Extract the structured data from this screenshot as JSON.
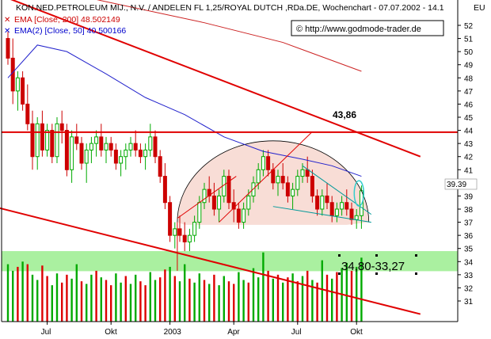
{
  "header": {
    "title": "KON.NED.PETROLEUM MIJ., N.V. / ANDELEN FL 1,25/ROYAL DUTCH ,RDa.DE, Wochenchart - 07.07.2002 - 14.1",
    "corner_label": "EU"
  },
  "legend": [
    {
      "symbol": "✕",
      "text": "EMA [Close, 200] 48.502149",
      "color": "#cc0000"
    },
    {
      "symbol": "✕",
      "text": "EMA(2) [Close, 50] 40.500166",
      "color": "#0000cc"
    }
  ],
  "copyright": "© http://www.godmode-trader.de",
  "annotations": {
    "resistance_value": "43,86",
    "support_zone": "34,80-33,27",
    "last_price": "39.39"
  },
  "colors": {
    "candle_up": "#00aa00",
    "candle_down": "#cc0000",
    "volume_up": "#00aa00",
    "volume_down": "#dd0000",
    "trendline": "#e00000",
    "ema200": "#cc2222",
    "ema50": "#2222cc",
    "support_zone": "#aaf0a0",
    "dome_fill": "#f8ddd6",
    "triangle_line": "#009999"
  },
  "chart_data": {
    "type": "candlestick",
    "ylim": [
      30,
      53.5
    ],
    "y_ticks": [
      31,
      32,
      33,
      34,
      35,
      36,
      37,
      38,
      39,
      40,
      41,
      42,
      43,
      44,
      45,
      46,
      47,
      48,
      49,
      50,
      51,
      52
    ],
    "x_ticks": [
      "Jul",
      "Okt",
      "2003",
      "Apr",
      "Jul",
      "Okt"
    ],
    "horizontal_lines": [
      {
        "value": 43.86,
        "label": "43,86"
      }
    ],
    "zones": [
      {
        "from": 33.27,
        "to": 34.8,
        "label": "34,80-33,27"
      }
    ],
    "candles": [
      [
        51.0,
        51.5,
        49.0,
        49.5
      ],
      [
        49.5,
        51.0,
        46.0,
        47.0
      ],
      [
        47.0,
        48.5,
        45.5,
        48.0
      ],
      [
        48.0,
        48.5,
        45.5,
        46.0
      ],
      [
        46.0,
        47.5,
        44.0,
        44.5
      ],
      [
        44.5,
        45.5,
        41.0,
        42.0
      ],
      [
        42.0,
        45.0,
        41.0,
        44.5
      ],
      [
        44.5,
        45.5,
        42.0,
        42.5
      ],
      [
        42.5,
        44.5,
        42.0,
        44.0
      ],
      [
        44.0,
        44.5,
        41.5,
        42.0
      ],
      [
        42.0,
        45.0,
        41.5,
        44.5
      ],
      [
        44.5,
        45.5,
        43.0,
        44.0
      ],
      [
        44.0,
        44.5,
        40.5,
        41.0
      ],
      [
        41.0,
        44.0,
        40.0,
        43.5
      ],
      [
        43.5,
        44.5,
        42.5,
        43.0
      ],
      [
        43.0,
        43.5,
        41.0,
        41.5
      ],
      [
        41.5,
        43.0,
        40.0,
        42.5
      ],
      [
        42.5,
        43.5,
        41.5,
        43.0
      ],
      [
        43.0,
        44.0,
        42.0,
        43.5
      ],
      [
        43.5,
        44.5,
        42.0,
        42.5
      ],
      [
        42.5,
        43.5,
        41.5,
        43.0
      ],
      [
        43.0,
        43.5,
        42.0,
        42.5
      ],
      [
        42.5,
        43.0,
        41.0,
        41.5
      ],
      [
        41.5,
        42.5,
        40.5,
        42.0
      ],
      [
        42.0,
        43.0,
        41.0,
        42.5
      ],
      [
        42.5,
        43.5,
        42.0,
        43.0
      ],
      [
        43.0,
        44.0,
        42.0,
        42.5
      ],
      [
        42.5,
        43.0,
        41.5,
        42.0
      ],
      [
        42.0,
        43.0,
        41.0,
        42.5
      ],
      [
        42.5,
        44.5,
        42.0,
        43.5
      ],
      [
        43.5,
        44.0,
        41.5,
        42.0
      ],
      [
        42.0,
        42.5,
        40.0,
        40.5
      ],
      [
        40.5,
        41.5,
        38.0,
        38.5
      ],
      [
        38.5,
        39.0,
        35.5,
        36.0
      ],
      [
        36.0,
        37.0,
        35.0,
        36.5
      ],
      [
        36.5,
        37.5,
        35.5,
        36.0
      ],
      [
        36.0,
        37.0,
        34.8,
        35.5
      ],
      [
        35.5,
        36.5,
        34.8,
        36.0
      ],
      [
        36.0,
        37.5,
        35.5,
        37.0
      ],
      [
        37.0,
        39.0,
        36.5,
        38.5
      ],
      [
        38.5,
        40.0,
        38.0,
        39.5
      ],
      [
        39.5,
        40.5,
        38.5,
        39.0
      ],
      [
        39.0,
        40.0,
        37.5,
        38.0
      ],
      [
        38.0,
        39.5,
        37.0,
        39.0
      ],
      [
        39.0,
        41.0,
        38.5,
        40.5
      ],
      [
        40.5,
        41.0,
        38.0,
        38.5
      ],
      [
        38.5,
        39.5,
        37.0,
        38.0
      ],
      [
        38.0,
        38.5,
        36.5,
        37.0
      ],
      [
        37.0,
        38.5,
        36.5,
        38.0
      ],
      [
        38.0,
        39.5,
        37.5,
        39.0
      ],
      [
        39.0,
        40.5,
        38.5,
        40.0
      ],
      [
        40.0,
        41.5,
        39.5,
        41.0
      ],
      [
        41.0,
        42.5,
        40.5,
        42.0
      ],
      [
        42.0,
        42.5,
        40.5,
        41.0
      ],
      [
        41.0,
        41.5,
        39.5,
        40.0
      ],
      [
        40.0,
        41.0,
        39.0,
        40.5
      ],
      [
        40.5,
        41.5,
        39.5,
        40.0
      ],
      [
        40.0,
        40.5,
        38.5,
        39.0
      ],
      [
        39.0,
        40.0,
        38.0,
        39.5
      ],
      [
        39.5,
        41.0,
        39.0,
        40.5
      ],
      [
        40.5,
        41.5,
        40.0,
        41.0
      ],
      [
        41.0,
        42.0,
        40.0,
        40.5
      ],
      [
        40.5,
        41.0,
        38.5,
        39.0
      ],
      [
        39.0,
        39.5,
        37.5,
        38.0
      ],
      [
        38.0,
        39.5,
        37.5,
        39.0
      ],
      [
        39.0,
        40.0,
        38.0,
        38.5
      ],
      [
        38.5,
        39.0,
        37.0,
        37.5
      ],
      [
        37.5,
        38.5,
        37.0,
        38.0
      ],
      [
        38.0,
        39.0,
        37.5,
        38.5
      ],
      [
        38.5,
        39.5,
        37.5,
        38.0
      ],
      [
        38.0,
        38.5,
        36.8,
        37.2
      ],
      [
        37.2,
        38.0,
        36.5,
        37.5
      ],
      [
        37.5,
        39.8,
        36.5,
        39.4
      ]
    ],
    "volume": [
      {
        "v": 33.8,
        "up": true
      },
      {
        "v": 33.3,
        "up": true
      },
      {
        "v": 33.6,
        "up": false
      },
      {
        "v": 34.0,
        "up": true
      },
      {
        "v": 33.8,
        "up": false
      },
      {
        "v": 33.0,
        "up": true
      },
      {
        "v": 32.6,
        "up": true
      },
      {
        "v": 33.7,
        "up": false
      },
      {
        "v": 32.9,
        "up": false
      },
      {
        "v": 32.2,
        "up": true
      },
      {
        "v": 33.1,
        "up": true
      },
      {
        "v": 32.4,
        "up": false
      },
      {
        "v": 33.0,
        "up": false
      },
      {
        "v": 32.7,
        "up": true
      },
      {
        "v": 33.8,
        "up": true
      },
      {
        "v": 32.5,
        "up": false
      },
      {
        "v": 32.3,
        "up": true
      },
      {
        "v": 33.0,
        "up": true
      },
      {
        "v": 33.3,
        "up": false
      },
      {
        "v": 32.8,
        "up": true
      },
      {
        "v": 32.6,
        "up": false
      },
      {
        "v": 32.2,
        "up": false
      },
      {
        "v": 33.1,
        "up": true
      },
      {
        "v": 32.4,
        "up": true
      },
      {
        "v": 32.9,
        "up": false
      },
      {
        "v": 32.3,
        "up": true
      },
      {
        "v": 33.0,
        "up": true
      },
      {
        "v": 32.5,
        "up": false
      },
      {
        "v": 32.2,
        "up": false
      },
      {
        "v": 33.2,
        "up": true
      },
      {
        "v": 32.6,
        "up": true
      },
      {
        "v": 32.8,
        "up": false
      },
      {
        "v": 33.4,
        "up": false
      },
      {
        "v": 33.6,
        "up": true
      },
      {
        "v": 32.9,
        "up": false
      },
      {
        "v": 32.5,
        "up": true
      },
      {
        "v": 33.8,
        "up": true
      },
      {
        "v": 32.7,
        "up": false
      },
      {
        "v": 32.4,
        "up": true
      },
      {
        "v": 33.1,
        "up": true
      },
      {
        "v": 32.6,
        "up": false
      },
      {
        "v": 32.3,
        "up": true
      },
      {
        "v": 33.0,
        "up": false
      },
      {
        "v": 32.2,
        "up": true
      },
      {
        "v": 32.9,
        "up": true
      },
      {
        "v": 32.5,
        "up": false
      },
      {
        "v": 32.3,
        "up": false
      },
      {
        "v": 33.2,
        "up": true
      },
      {
        "v": 32.6,
        "up": true
      },
      {
        "v": 32.4,
        "up": false
      },
      {
        "v": 33.5,
        "up": true
      },
      {
        "v": 32.8,
        "up": true
      },
      {
        "v": 34.7,
        "up": true
      },
      {
        "v": 33.3,
        "up": false
      },
      {
        "v": 32.7,
        "up": true
      },
      {
        "v": 33.0,
        "up": false
      },
      {
        "v": 32.4,
        "up": true
      },
      {
        "v": 32.8,
        "up": false
      },
      {
        "v": 33.1,
        "up": true
      },
      {
        "v": 32.5,
        "up": false
      },
      {
        "v": 32.9,
        "up": true
      },
      {
        "v": 33.3,
        "up": false
      },
      {
        "v": 32.6,
        "up": true
      },
      {
        "v": 32.4,
        "up": false
      },
      {
        "v": 34.1,
        "up": true
      },
      {
        "v": 33.0,
        "up": false
      },
      {
        "v": 32.7,
        "up": true
      },
      {
        "v": 33.2,
        "up": false
      },
      {
        "v": 33.5,
        "up": true
      },
      {
        "v": 33.9,
        "up": true
      },
      {
        "v": 33.3,
        "up": false
      },
      {
        "v": 33.6,
        "up": true
      },
      {
        "v": 34.3,
        "up": true
      }
    ],
    "ema200": [
      [
        0,
        55.5
      ],
      [
        20,
        53.8
      ],
      [
        40,
        52.2
      ],
      [
        56,
        50.7
      ],
      [
        72,
        48.5
      ]
    ],
    "ema50": [
      [
        0,
        48.0
      ],
      [
        6,
        50.5
      ],
      [
        12,
        50.0
      ],
      [
        20,
        48.3
      ],
      [
        28,
        46.5
      ],
      [
        36,
        45.2
      ],
      [
        44,
        43.5
      ],
      [
        52,
        42.4
      ],
      [
        60,
        41.8
      ],
      [
        66,
        41.3
      ],
      [
        72,
        40.5
      ]
    ],
    "trendlines": [
      {
        "from": [
          -3,
          54.5
        ],
        "to": [
          84,
          42.0
        ]
      },
      {
        "from": [
          -3,
          38.2
        ],
        "to": [
          84,
          30.0
        ]
      },
      {
        "from": [
          43,
          37.0
        ],
        "to": [
          62,
          43.9
        ]
      }
    ]
  }
}
